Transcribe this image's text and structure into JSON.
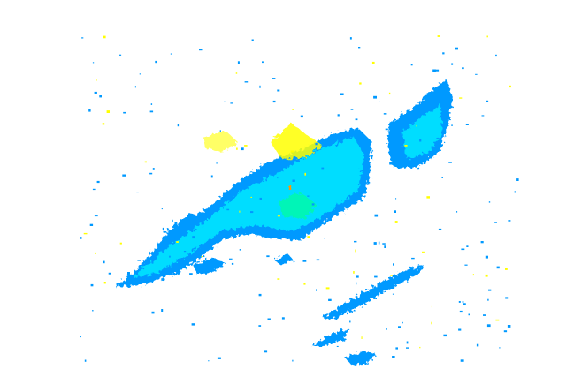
{
  "radar": {
    "background": "#ffffff",
    "colors": {
      "light_echo": "#0099ff",
      "moderate_echo": "#00ddff",
      "strong_echo": "#00ff99",
      "heavy_echo": "#ffff00",
      "very_heavy_echo": "#ff9900"
    }
  }
}
